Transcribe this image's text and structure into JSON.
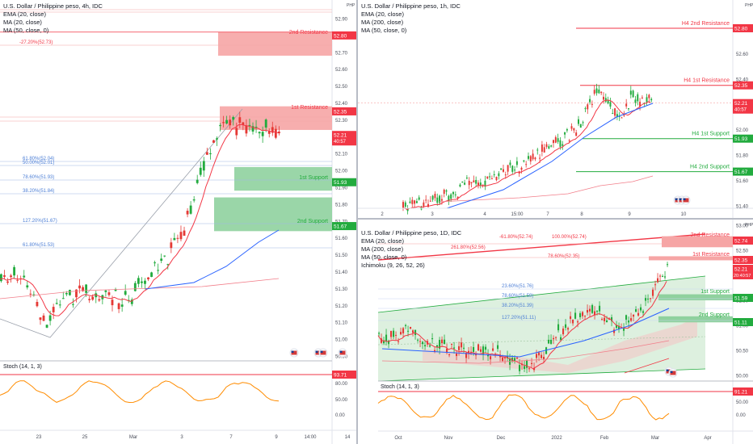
{
  "colors": {
    "resistance": "#f23645",
    "support": "#22ab3e",
    "fib": "#4d7fd6",
    "ema": "#f23645",
    "ma200": "#f27e8a",
    "ma50": "#2962ff",
    "stoch": "#ff8c00",
    "bull": "#26a69a",
    "bear": "#ef5350",
    "candle_up": "#22ab3e",
    "candle_down": "#e53935"
  },
  "chart4h": {
    "title": "U.S. Dollar / Philippine peso, 4h, IDC",
    "legend": [
      "EMA (20, close)",
      "MA (20, close)",
      "MA (50, close, 0)"
    ],
    "currency": "PHP",
    "yticks": [
      "52.90",
      "52.80",
      "52.70",
      "52.60",
      "52.50",
      "52.40",
      "52.30",
      "52.20",
      "52.10",
      "52.00",
      "51.90",
      "51.80",
      "51.70",
      "51.60",
      "51.50",
      "51.40",
      "51.30",
      "51.20",
      "51.10",
      "51.00",
      "50.90"
    ],
    "xticks": [
      "23",
      "25",
      "Mar",
      "3",
      "7",
      "9",
      "14:00",
      "14"
    ],
    "zones": {
      "r2": "2nd Resistance",
      "r1": "1st Resistance",
      "s1": "1st Support",
      "s2": "2nd Support"
    },
    "zone_tags": {
      "r2": "52.80",
      "r1": "52.35",
      "s1": "51.93",
      "s2": "51.67"
    },
    "price_tag": "52.21",
    "countdown": "40:57",
    "fibs": [
      "-27.20%(52.73)",
      "61.80%(52.04)",
      "50.00%(52.01)",
      "78.60%(51.93)",
      "38.20%(51.84)",
      "127.20%(51.67)",
      "61.80%(51.53)"
    ],
    "stoch_title": "Stoch (14, 1, 3)",
    "stoch_tag": "93.71",
    "stoch_ticks": [
      "80.00",
      "50.00",
      "0.00"
    ]
  },
  "chart1h": {
    "title": "U.S. Dollar / Philippine peso, 1h, IDC",
    "legend": [
      "EMA (20, close)",
      "MA (200, close)",
      "MA (50, close, 0)"
    ],
    "currency": "PHP",
    "yticks": [
      "52.80",
      "52.60",
      "52.40",
      "52.20",
      "52.00",
      "51.80",
      "51.60",
      "51.40"
    ],
    "xticks": [
      "2",
      "3",
      "4",
      "15:00",
      "7",
      "8",
      "9",
      "10"
    ],
    "levels": {
      "r2": "H4 2nd Resistance",
      "r1": "H4 1st Resistance",
      "s1": "H4 1st Support",
      "s2": "H4 2nd Support"
    },
    "level_tags": {
      "r2": "52.80",
      "r1": "52.35",
      "s1": "51.93",
      "s2": "51.67"
    },
    "price_tag": "52.21",
    "countdown": "40:57"
  },
  "chart1d": {
    "title": "U.S. Dollar / Philippine peso, 1D, IDC",
    "legend": [
      "EMA (20, close)",
      "MA (200, close)",
      "MA (50, close, 0)",
      "Ichimoku (9, 26, 52, 26)"
    ],
    "currency": "PHP",
    "yticks": [
      "53.00",
      "52.50",
      "52.00",
      "51.50",
      "51.00",
      "50.50",
      "50.00"
    ],
    "xticks": [
      "Oct",
      "Nov",
      "Dec",
      "2022",
      "Feb",
      "Mar",
      "Apr"
    ],
    "zones": {
      "r2": "2nd Resistance",
      "r1": "1st Resistance",
      "s1": "1st Support",
      "s2": "2nd Support"
    },
    "zone_tags": {
      "r2": "52.74",
      "r1": "52.35",
      "s1": "51.59",
      "s2": "51.11"
    },
    "price_tag": "52.21",
    "countdown": "20:40:57",
    "fibs": [
      "-61.80%(52.74)",
      "100.00%(52.74)",
      "261.80%(52.56)",
      "78.60%(52.35)",
      "23.60%(51.76)",
      "78.60%(51.59)",
      "38.20%(51.39)",
      "127.20%(51.11)"
    ],
    "stoch_title": "Stoch (14, 1, 3)",
    "stoch_tag": "91.21",
    "stoch_ticks": [
      "50.00",
      "0.00"
    ]
  }
}
